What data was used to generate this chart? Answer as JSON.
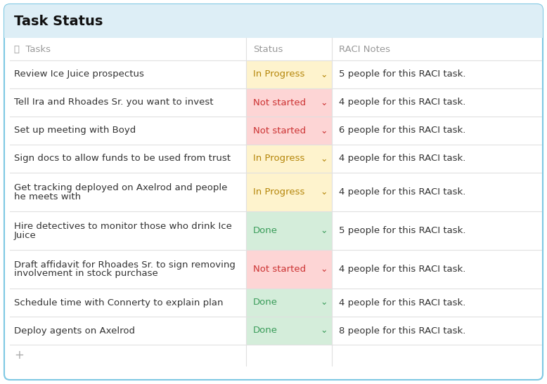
{
  "title": "Task Status",
  "header": [
    "Tasks",
    "Status",
    "RACI Notes"
  ],
  "rows": [
    {
      "task": "Review Ice Juice prospectus",
      "status": "In Progress",
      "notes": "5 people for this RACI task.",
      "multiline": false
    },
    {
      "task": "Tell Ira and Rhoades Sr. you want to invest",
      "status": "Not started",
      "notes": "4 people for this RACI task.",
      "multiline": false
    },
    {
      "task": "Set up meeting with Boyd",
      "status": "Not started",
      "notes": "6 people for this RACI task.",
      "multiline": false
    },
    {
      "task": "Sign docs to allow funds to be used from trust",
      "status": "In Progress",
      "notes": "4 people for this RACI task.",
      "multiline": false
    },
    {
      "task": "Get tracking deployed on Axelrod and people\nhe meets with",
      "status": "In Progress",
      "notes": "4 people for this RACI task.",
      "multiline": true
    },
    {
      "task": "Hire detectives to monitor those who drink Ice\nJuice",
      "status": "Done",
      "notes": "5 people for this RACI task.",
      "multiline": true
    },
    {
      "task": "Draft affidavit for Rhoades Sr. to sign removing\ninvolvement in stock purchase",
      "status": "Not started",
      "notes": "4 people for this RACI task.",
      "multiline": true
    },
    {
      "task": "Schedule time with Connerty to explain plan",
      "status": "Done",
      "notes": "4 people for this RACI task.",
      "multiline": false
    },
    {
      "task": "Deploy agents on Axelrod",
      "status": "Done",
      "notes": "8 people for this RACI task.",
      "multiline": false
    }
  ],
  "status_colors": {
    "In Progress": {
      "bg": "#fef3cd",
      "text": "#b5860a"
    },
    "Not started": {
      "bg": "#fdd5d5",
      "text": "#cc3333"
    },
    "Done": {
      "bg": "#d4edda",
      "text": "#3a9c5a"
    }
  },
  "title_bg": "#ddeef6",
  "outer_border_color": "#7ec8e3",
  "header_text_color": "#999999",
  "task_text_color": "#333333",
  "notes_text_color": "#333333",
  "divider_color": "#e0e0e0",
  "plus_color": "#aaaaaa",
  "title_fontsize": 14,
  "header_fontsize": 9.5,
  "cell_fontsize": 9.5,
  "fig_width": 7.78,
  "fig_height": 5.47,
  "dpi": 100
}
